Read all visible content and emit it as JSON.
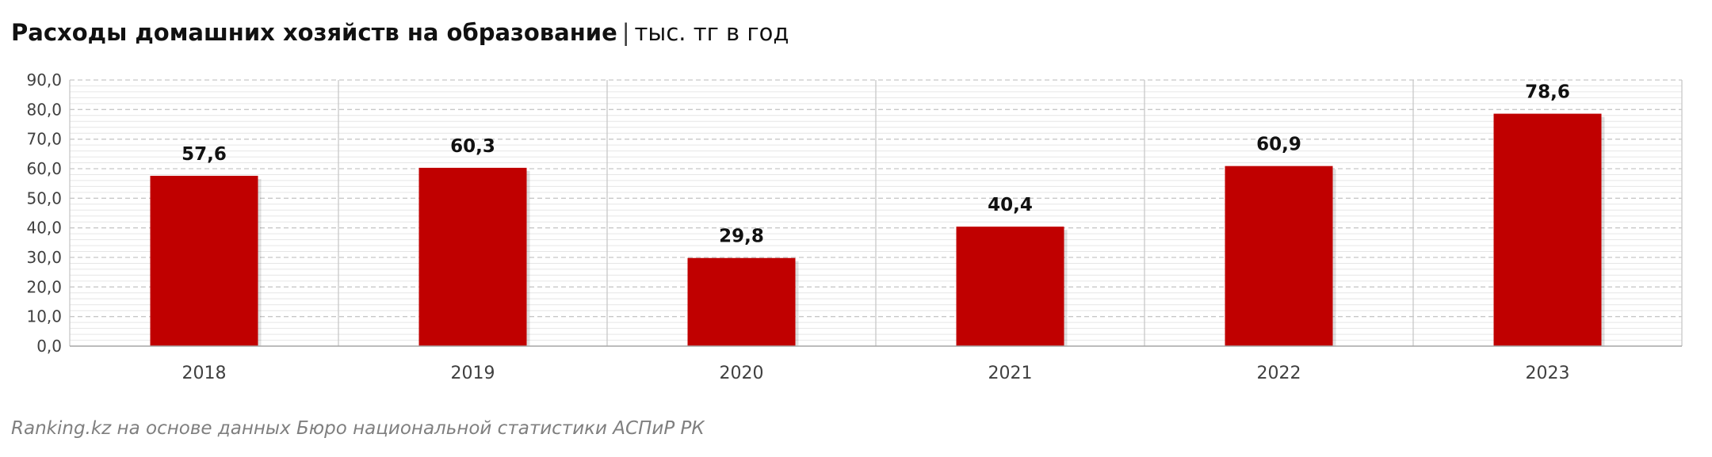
{
  "title": {
    "main": "Расходы домашних хозяйств на образование",
    "separator": "|",
    "unit": "тыс. тг в год"
  },
  "source": "Ranking.kz на основе данных Бюро национальной статистики АСПиР РК",
  "colors": {
    "bar": "#c00000",
    "grid_major": "#c8c8c8",
    "grid_minor": "#e6e6e6",
    "axis": "#a6a6a6",
    "text": "#404040"
  },
  "chart_data": {
    "type": "bar",
    "categories": [
      "2018",
      "2019",
      "2020",
      "2021",
      "2022",
      "2023"
    ],
    "series": [
      {
        "values": [
          57.6,
          60.3,
          29.8,
          40.4,
          60.9,
          78.6
        ]
      }
    ],
    "value_labels": [
      "57,6",
      "60,3",
      "29,8",
      "40,4",
      "60,9",
      "78,6"
    ],
    "yticks": [
      "0,0",
      "10,0",
      "20,0",
      "30,0",
      "40,0",
      "50,0",
      "60,0",
      "70,0",
      "80,0",
      "90,0"
    ],
    "ylim": [
      0,
      90
    ],
    "xlabel": "",
    "ylabel": "",
    "grid": true,
    "legend": "none"
  }
}
